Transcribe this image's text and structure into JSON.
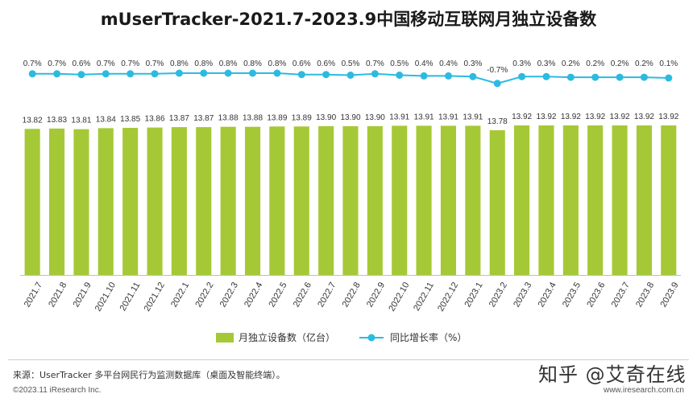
{
  "title": "mUserTracker-2021.7-2023.9中国移动互联网月独立设备数",
  "footer": {
    "source": "来源：UserTracker 多平台网民行为监测数据库（桌面及智能终端）。",
    "copyright": "©2023.11 iResearch Inc.",
    "site": "www.iresearch.com.cn",
    "watermark": "知乎 @艾奇在线"
  },
  "colors": {
    "bar": "#a5c936",
    "line": "#2bbbe0",
    "text": "#333333"
  },
  "chart_data": {
    "type": "bar",
    "categories": [
      "2021.7",
      "2021.8",
      "2021.9",
      "2021.10",
      "2021.11",
      "2021.12",
      "2022.1",
      "2022.2",
      "2022.3",
      "2022.4",
      "2022.5",
      "2022.6",
      "2022.7",
      "2022.8",
      "2022.9",
      "2022.10",
      "2022.11",
      "2022.12",
      "2023.1",
      "2023.2",
      "2023.3",
      "2023.4",
      "2023.5",
      "2023.6",
      "2023.7",
      "2023.8",
      "2023.9"
    ],
    "series": [
      {
        "name": "月独立设备数（亿台）",
        "type": "bar",
        "values": [
          13.82,
          13.83,
          13.81,
          13.84,
          13.85,
          13.86,
          13.87,
          13.87,
          13.88,
          13.88,
          13.89,
          13.89,
          13.9,
          13.9,
          13.9,
          13.91,
          13.91,
          13.91,
          13.91,
          13.78,
          13.92,
          13.92,
          13.92,
          13.92,
          13.92,
          13.92,
          13.92
        ],
        "labels": [
          "13.82",
          "13.83",
          "13.81",
          "13.84",
          "13.85",
          "13.86",
          "13.87",
          "13.87",
          "13.88",
          "13.88",
          "13.89",
          "13.89",
          "13.90",
          "13.90",
          "13.90",
          "13.91",
          "13.91",
          "13.91",
          "13.91",
          "13.78",
          "13.92",
          "13.92",
          "13.92",
          "13.92",
          "13.92",
          "13.92",
          "13.92"
        ]
      },
      {
        "name": "同比增长率（%）",
        "type": "line",
        "values": [
          0.7,
          0.7,
          0.6,
          0.7,
          0.7,
          0.7,
          0.8,
          0.8,
          0.8,
          0.8,
          0.8,
          0.6,
          0.6,
          0.5,
          0.7,
          0.5,
          0.4,
          0.4,
          0.3,
          -0.7,
          0.3,
          0.3,
          0.2,
          0.2,
          0.2,
          0.2,
          0.1
        ],
        "labels": [
          "0.7%",
          "0.7%",
          "0.6%",
          "0.7%",
          "0.7%",
          "0.7%",
          "0.8%",
          "0.8%",
          "0.8%",
          "0.8%",
          "0.8%",
          "0.6%",
          "0.6%",
          "0.5%",
          "0.7%",
          "0.5%",
          "0.4%",
          "0.4%",
          "0.3%",
          "-0.7%",
          "0.3%",
          "0.3%",
          "0.2%",
          "0.2%",
          "0.2%",
          "0.2%",
          "0.1%"
        ]
      }
    ],
    "legend": {
      "position": "bottom"
    },
    "grid": false
  }
}
